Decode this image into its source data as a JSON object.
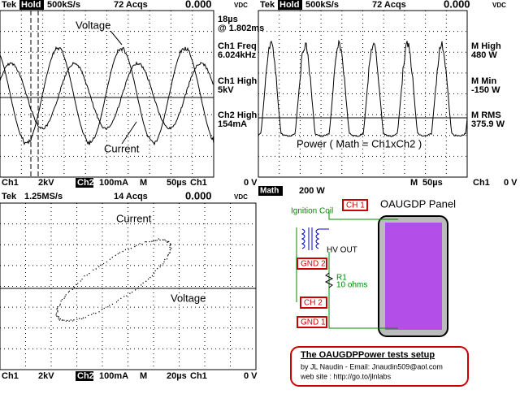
{
  "panels": [
    {
      "header": {
        "brand": "Tek",
        "mode": "Hold",
        "rate": "500kS/s",
        "acqs": "72 Acqs",
        "reading": "0.000",
        "unit": "VDC"
      },
      "readouts": [
        "18µs",
        "@ 1.802ms",
        "Ch1 Freq",
        "6.024kHz",
        "Ch1 High",
        "5kV",
        "Ch2 High",
        "154mA"
      ],
      "labels": [
        "Voltage",
        "Current"
      ],
      "footer": [
        "Ch1",
        "2kV",
        "Ch2",
        "100mA",
        "M",
        "50µs",
        "Ch1",
        "0 V"
      ]
    },
    {
      "header": {
        "brand": "Tek",
        "mode": "Hold",
        "rate": "500kS/s",
        "acqs": "72 Acqs",
        "reading": "0.000",
        "unit": "VDC"
      },
      "readouts": [
        "M High",
        "480 W",
        "M Min",
        "-150 W",
        "M RMS",
        "375.9 W"
      ],
      "labels": [
        "Power ( Math = Ch1xCh2 )"
      ],
      "footer": [
        "M",
        "50µs",
        "Ch1",
        "0 V",
        "Math",
        "200 W"
      ]
    },
    {
      "header": {
        "brand": "Tek",
        "rate": "1.25MS/s",
        "acqs": "14 Acqs",
        "reading": "0.000",
        "unit": "VDC"
      },
      "labels": [
        "Current",
        "Voltage"
      ],
      "footer": [
        "Ch1",
        "2kV",
        "Ch2",
        "100mA",
        "M",
        "20µs",
        "Ch1",
        "0 V"
      ]
    }
  ],
  "diagram": {
    "coil": "Ignition Coil",
    "ch1": "CH 1",
    "panel": "OAUGDP Panel",
    "hv_out": "HV OUT",
    "gnd2": "GND 2",
    "r1": "R1",
    "r1_value": "10 ohms",
    "ch2": "CH 2",
    "gnd1": "GND 1",
    "title": "The OAUGDPPower tests setup",
    "author": "by JL Naudin - Email: Jnaudin509@aol.com",
    "website": "web site :   http://go.to/jlnlabs"
  }
}
